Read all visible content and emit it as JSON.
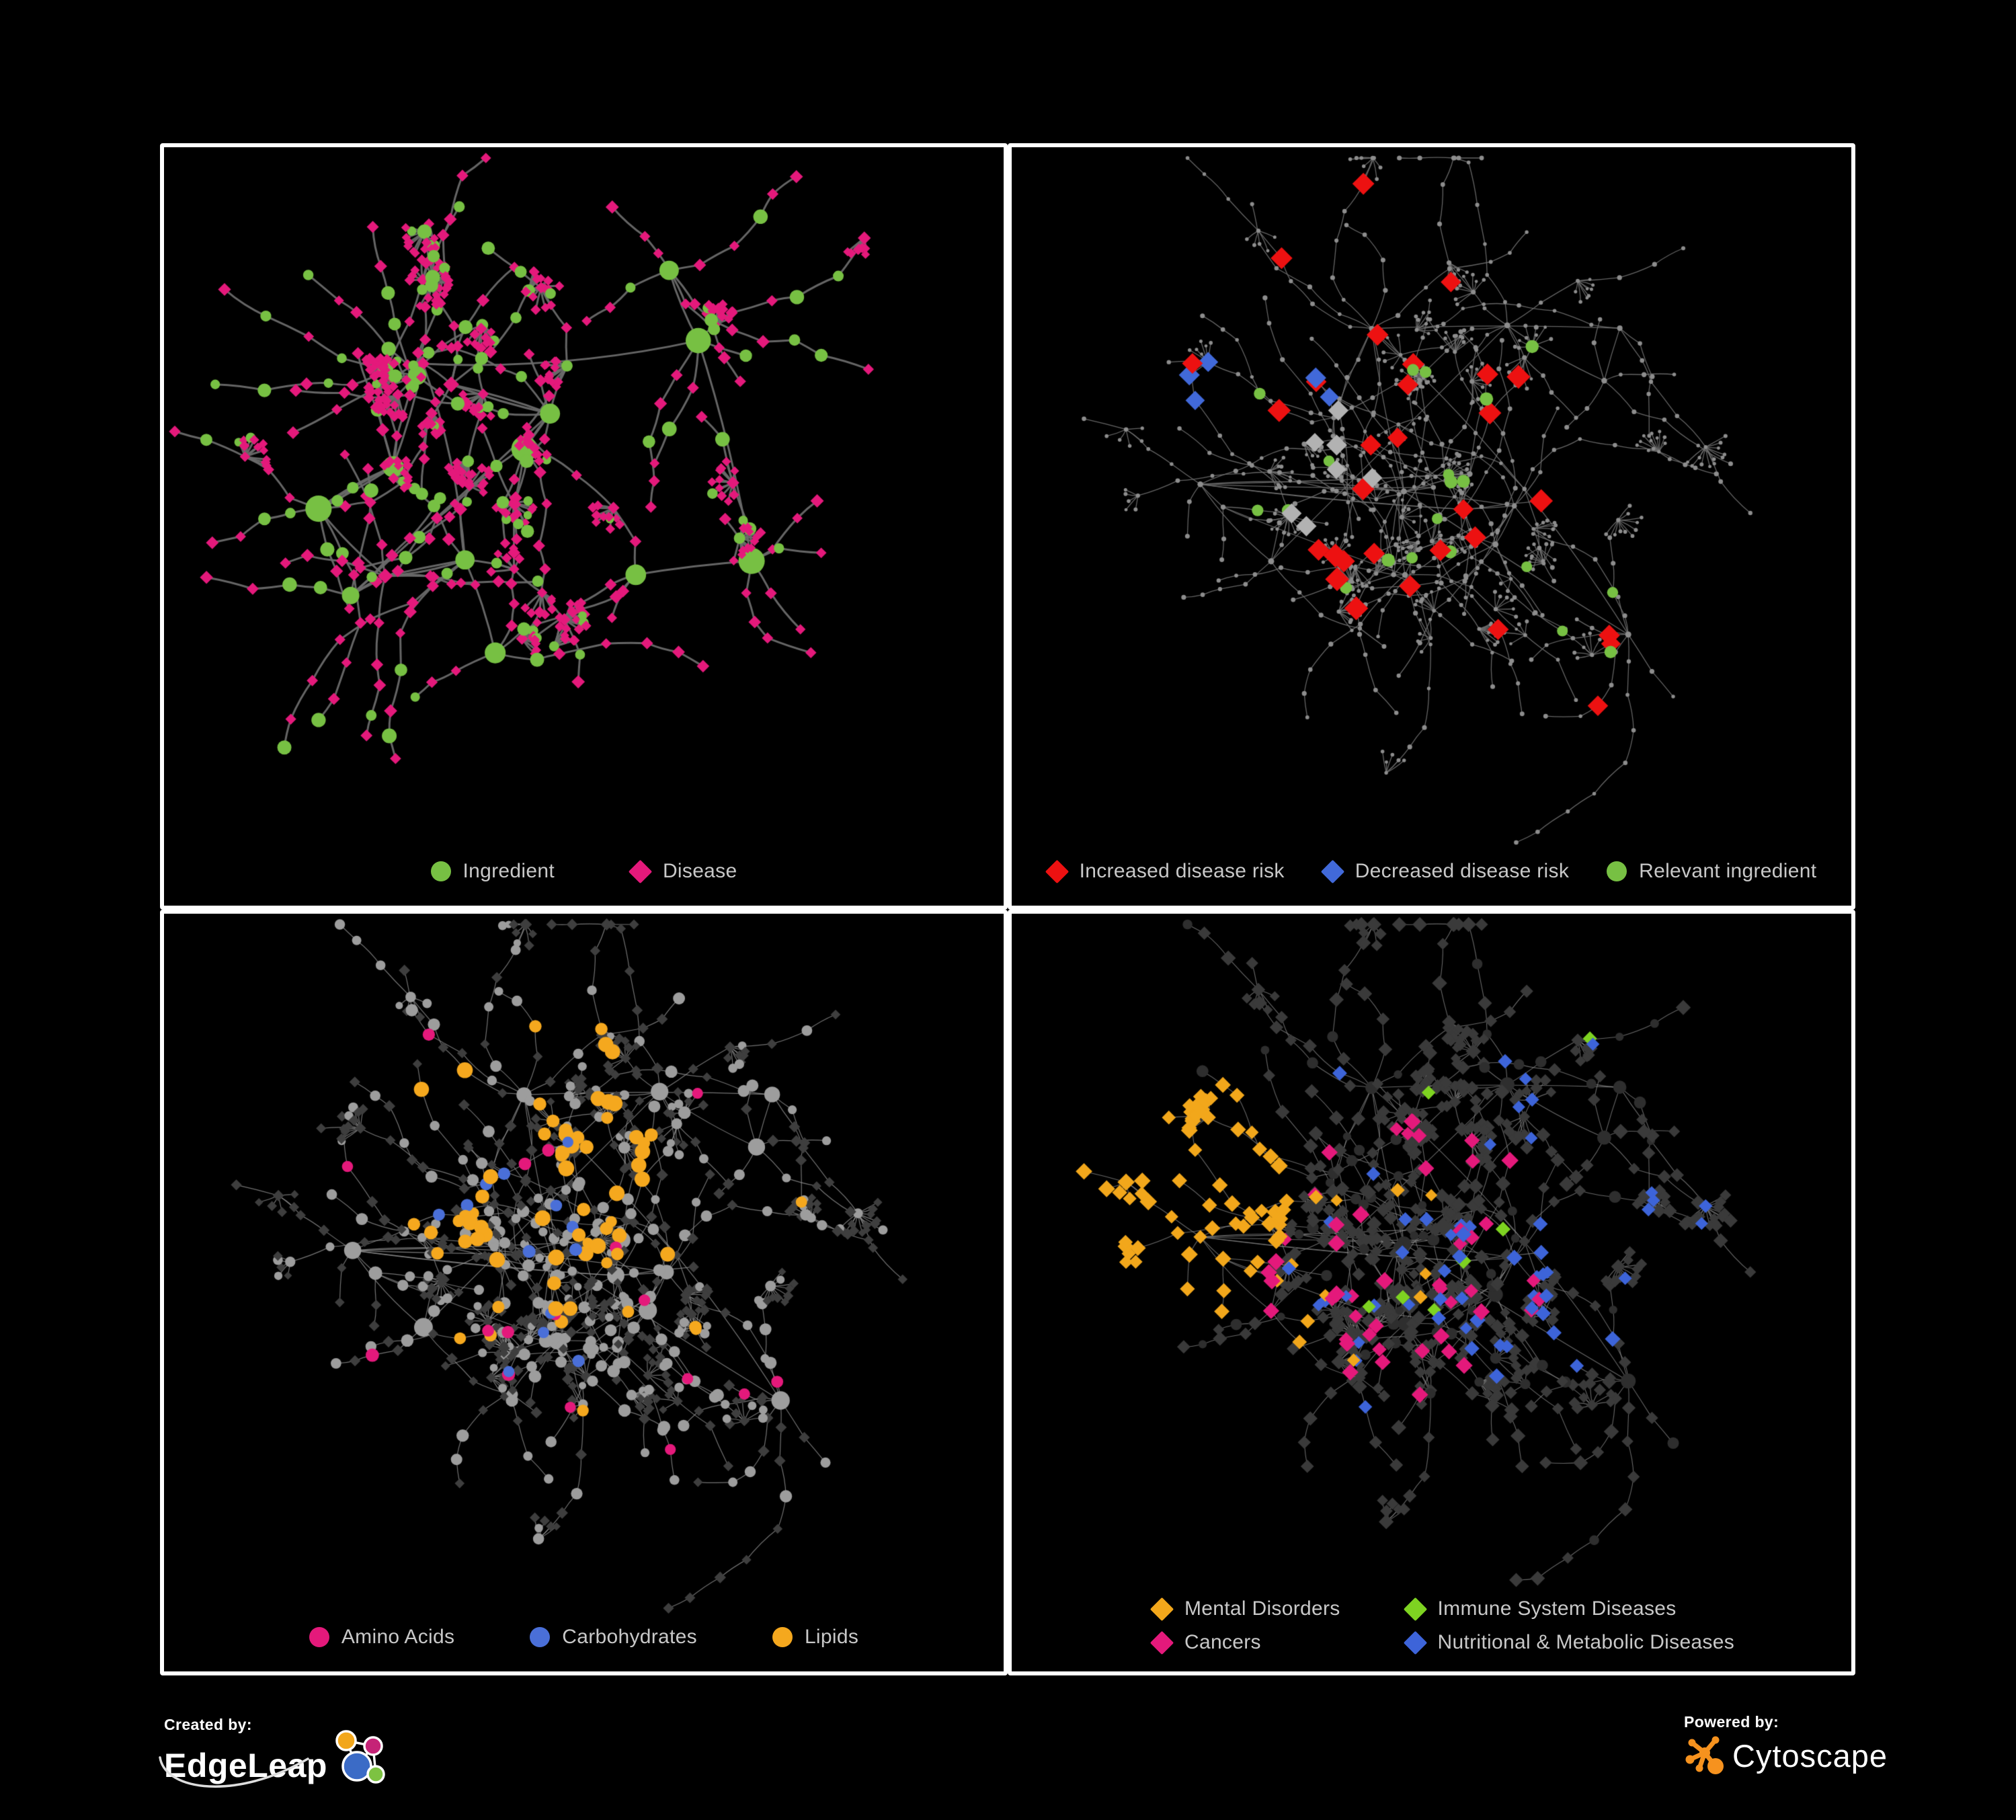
{
  "page": {
    "background": "#000000",
    "frame_color": "#ffffff",
    "legend_text_color": "#c8c8c8"
  },
  "panels": [
    {
      "name": "ingredient-disease-network",
      "legend": [
        {
          "label": "Ingredient",
          "shape": "circle",
          "color": "#77C043"
        },
        {
          "label": "Disease",
          "shape": "diamond",
          "color": "#E4197B"
        }
      ],
      "network": {
        "seed": 11,
        "gen": {
          "hubs": 15,
          "bMin": 3,
          "bMax": 6,
          "len": 6,
          "step": 30,
          "stepV": 46,
          "burst": 0.1,
          "burstK": 9
        },
        "style": {
          "edgeColor": "#6a6a6a",
          "edgeWidth": 3,
          "edgeAlpha": 0.95,
          "base": {
            "hub": {
              "mix": [
                {
                  "p": 0.68,
                  "shape": "circle",
                  "color": "#77C043",
                  "s": 12,
                  "sv": 8
                },
                {
                  "p": 0.32,
                  "shape": "diamond",
                  "color": "#E4197B",
                  "s": 9,
                  "sv": 3
                }
              ]
            },
            "node": {
              "mix": [
                {
                  "p": 0.3,
                  "shape": "circle",
                  "color": "#77C043",
                  "s": 7,
                  "sv": 4
                },
                {
                  "p": 0.7,
                  "shape": "diamond",
                  "color": "#E4197B",
                  "s": 7.5,
                  "sv": 2.5
                }
              ]
            },
            "leaf": {
              "mix": [
                {
                  "p": 0.12,
                  "shape": "circle",
                  "color": "#77C043",
                  "s": 6,
                  "sv": 2
                },
                {
                  "p": 0.88,
                  "shape": "diamond",
                  "color": "#E4197B",
                  "s": 6.5,
                  "sv": 1.5
                }
              ]
            }
          },
          "highlights": []
        }
      }
    },
    {
      "name": "disease-risk-network",
      "legend": [
        {
          "label": "Increased disease risk",
          "shape": "diamond",
          "color": "#ED1111"
        },
        {
          "label": "Decreased disease risk",
          "shape": "diamond",
          "color": "#4169D9"
        },
        {
          "label": "Relevant ingredient",
          "shape": "circle",
          "color": "#77C043"
        }
      ],
      "network": {
        "seed": 77,
        "gen": {
          "hubs": 18,
          "bMin": 3,
          "bMax": 7,
          "len": 7,
          "step": 26,
          "stepV": 40,
          "burst": 0.11,
          "burstK": 9
        },
        "style": {
          "edgeColor": "#6f6f6f",
          "edgeWidth": 1.3,
          "edgeAlpha": 0.9,
          "base": {
            "hub": {
              "shape": "circle",
              "color": "#8d8d8d",
              "s": 3.4,
              "sv": 1.4
            },
            "node": {
              "shape": "circle",
              "color": "#8d8d8d",
              "s": 2.7,
              "sv": 1.0
            },
            "leaf": {
              "shape": "circle",
              "color": "#8d8d8d",
              "s": 2.3,
              "sv": 0.8
            }
          },
          "highlights": [
            {
              "n": 26,
              "shape": "diamond",
              "color": "#ED1111",
              "s": 15,
              "sv": 3,
              "fx": 0.4,
              "fy": 0.36,
              "spread": 0.26
            },
            {
              "n": 4,
              "shape": "diamond",
              "color": "#ED1111",
              "s": 14,
              "sv": 2,
              "fx": 0.64,
              "fy": 0.8,
              "spread": 0.12
            },
            {
              "n": 5,
              "shape": "diamond",
              "color": "#4169D9",
              "s": 14,
              "sv": 2,
              "fx": 0.29,
              "fy": 0.36,
              "spread": 0.09
            },
            {
              "n": 3,
              "shape": "diamond",
              "color": "#4169D9",
              "s": 13,
              "sv": 2,
              "fx": 0.86,
              "fy": 0.25,
              "spread": 0.06
            },
            {
              "n": 7,
              "shape": "diamond",
              "color": "#B2B2B2",
              "s": 14,
              "sv": 2,
              "fx": 0.33,
              "fy": 0.45,
              "spread": 0.14
            },
            {
              "n": 16,
              "shape": "circle",
              "color": "#77C043",
              "s": 8,
              "sv": 2,
              "fx": 0.38,
              "fy": 0.38,
              "spread": 0.26
            },
            {
              "n": 4,
              "shape": "circle",
              "color": "#77C043",
              "s": 8,
              "sv": 2,
              "fx": 0.72,
              "fy": 0.7,
              "spread": 0.14
            }
          ]
        }
      }
    },
    {
      "name": "macronutrient-network",
      "legend": [
        {
          "label": "Amino Acids",
          "shape": "circle",
          "color": "#E4197B"
        },
        {
          "label": "Carbohydrates",
          "shape": "circle",
          "color": "#4A6FD8"
        },
        {
          "label": "Lipids",
          "shape": "circle",
          "color": "#F5A81E"
        }
      ],
      "network": {
        "seed": 77,
        "gen": {
          "hubs": 18,
          "bMin": 3,
          "bMax": 7,
          "len": 7,
          "step": 26,
          "stepV": 40,
          "burst": 0.11,
          "burstK": 9
        },
        "style": {
          "edgeColor": "#8f8f8f",
          "edgeWidth": 1.2,
          "edgeAlpha": 0.8,
          "base": {
            "hub": {
              "shape": "circle",
              "color": "#9d9d9d",
              "s": 9,
              "sv": 6
            },
            "node": {
              "mix": [
                {
                  "p": 0.5,
                  "shape": "circle",
                  "color": "#9d9d9d",
                  "s": 6.5,
                  "sv": 3
                },
                {
                  "p": 0.5,
                  "shape": "diamond",
                  "color": "#3e3e3e",
                  "s": 7,
                  "sv": 2
                }
              ]
            },
            "leaf": {
              "mix": [
                {
                  "p": 0.25,
                  "shape": "circle",
                  "color": "#9d9d9d",
                  "s": 5.5,
                  "sv": 2
                },
                {
                  "p": 0.75,
                  "shape": "diamond",
                  "color": "#3e3e3e",
                  "s": 6,
                  "sv": 2
                }
              ]
            }
          },
          "highlights": [
            {
              "n": 55,
              "shape": "circle",
              "color": "#F5A81E",
              "s": 9,
              "sv": 3,
              "fx": 0.45,
              "fy": 0.33,
              "spread": 0.2
            },
            {
              "n": 12,
              "shape": "circle",
              "color": "#F5A81E",
              "s": 8,
              "sv": 2,
              "fx": 0.55,
              "fy": 0.62,
              "spread": 0.28
            },
            {
              "n": 9,
              "shape": "circle",
              "color": "#4A6FD8",
              "s": 8,
              "sv": 2,
              "fx": 0.43,
              "fy": 0.34,
              "spread": 0.13
            },
            {
              "n": 4,
              "shape": "circle",
              "color": "#4A6FD8",
              "s": 8,
              "sv": 2,
              "fx": 0.2,
              "fy": 0.45,
              "spread": 0.35
            },
            {
              "n": 17,
              "shape": "circle",
              "color": "#E4197B",
              "s": 8,
              "sv": 2,
              "fx": 0.45,
              "fy": 0.55,
              "spread": 0.45
            }
          ]
        }
      }
    },
    {
      "name": "disease-class-network",
      "legend": [
        {
          "label": "Mental Disorders",
          "shape": "diamond",
          "color": "#F2A71B"
        },
        {
          "label": "Immune System Diseases",
          "shape": "diamond",
          "color": "#7ED321"
        },
        {
          "label": "Cancers",
          "shape": "diamond",
          "color": "#E4197B"
        },
        {
          "label": "Nutritional & Metabolic Diseases",
          "shape": "diamond",
          "color": "#3D64D9"
        }
      ],
      "network": {
        "seed": 77,
        "gen": {
          "hubs": 18,
          "bMin": 3,
          "bMax": 7,
          "len": 7,
          "step": 26,
          "stepV": 40,
          "burst": 0.11,
          "burstK": 9
        },
        "style": {
          "edgeColor": "#8a8a8a",
          "edgeWidth": 1.1,
          "edgeAlpha": 0.75,
          "base": {
            "hub": {
              "shape": "circle",
              "color": "#2e2e2e",
              "s": 8,
              "sv": 4
            },
            "node": {
              "mix": [
                {
                  "p": 0.85,
                  "shape": "diamond",
                  "color": "#3a3a3a",
                  "s": 8.5,
                  "sv": 3
                },
                {
                  "p": 0.15,
                  "shape": "circle",
                  "color": "#2e2e2e",
                  "s": 6,
                  "sv": 3
                }
              ]
            },
            "leaf": {
              "shape": "diamond",
              "color": "#3a3a3a",
              "s": 7.5,
              "sv": 2
            }
          },
          "highlights": [
            {
              "n": 78,
              "shape": "diamond",
              "color": "#F2A71B",
              "s": 10,
              "sv": 3,
              "fx": 0.17,
              "fy": 0.42,
              "spread": 0.16
            },
            {
              "n": 12,
              "shape": "diamond",
              "color": "#F2A71B",
              "s": 9,
              "sv": 2,
              "fx": 0.45,
              "fy": 0.75,
              "spread": 0.3
            },
            {
              "n": 48,
              "shape": "diamond",
              "color": "#E4197B",
              "s": 10,
              "sv": 3,
              "fx": 0.47,
              "fy": 0.5,
              "spread": 0.18
            },
            {
              "n": 7,
              "shape": "diamond",
              "color": "#E4197B",
              "s": 10,
              "sv": 2,
              "fx": 0.9,
              "fy": 0.2,
              "spread": 0.07
            },
            {
              "n": 22,
              "shape": "diamond",
              "color": "#3D64D9",
              "s": 10,
              "sv": 2,
              "fx": 0.62,
              "fy": 0.55,
              "spread": 0.12
            },
            {
              "n": 20,
              "shape": "diamond",
              "color": "#3D64D9",
              "s": 9,
              "sv": 2,
              "fx": 0.65,
              "fy": 0.2,
              "spread": 0.28
            },
            {
              "n": 14,
              "shape": "diamond",
              "color": "#3D64D9",
              "s": 9,
              "sv": 2,
              "fx": 0.3,
              "fy": 0.8,
              "spread": 0.3
            },
            {
              "n": 7,
              "shape": "diamond",
              "color": "#7ED321",
              "s": 10,
              "sv": 2,
              "fx": 0.5,
              "fy": 0.35,
              "spread": 0.3
            }
          ]
        }
      }
    }
  ],
  "footer": {
    "created_by_label": "Created by:",
    "edgeleap_brand": "EdgeLeap",
    "powered_by_label": "Powered by:",
    "cytoscape_brand": "Cytoscape",
    "cytoscape_color": "#F6921E",
    "edgeleap_colors": {
      "blue": "#3B6BC6",
      "orange": "#F2A71B",
      "magenta": "#C52377",
      "green": "#7DC242"
    }
  }
}
